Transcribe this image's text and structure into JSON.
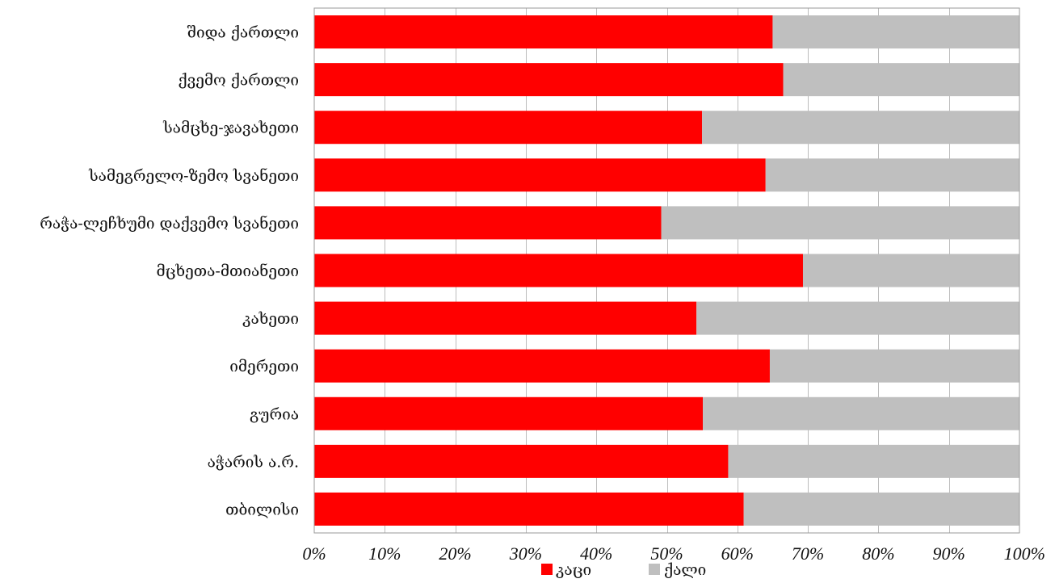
{
  "chart_data": {
    "type": "bar",
    "orientation": "horizontal",
    "stacked": "percent",
    "categories": [
      "შიდა ქართლი",
      "ქვემო ქართლი",
      "სამცხე-ჯავახეთი",
      "სამეგრელო-ზემო სვანეთი",
      "რაჭა-ლეჩხუმი დაქვემო სვანეთი",
      "მცხეთა-მთიანეთი",
      "კახეთი",
      "იმერეთი",
      "გურია",
      "აჭარის ა.რ.",
      "თბილისი"
    ],
    "series": [
      {
        "name": "კაცი",
        "color": "#ff0000",
        "values": [
          65,
          66.5,
          55,
          64,
          49.2,
          69.3,
          54.2,
          64.6,
          55.1,
          58.7,
          60.9
        ]
      },
      {
        "name": "ქალი",
        "color": "#bfbfbf",
        "values": [
          35,
          33.5,
          45,
          36,
          50.8,
          30.7,
          45.8,
          35.4,
          44.9,
          41.3,
          39.1
        ]
      }
    ],
    "x_ticks": [
      "0%",
      "10%",
      "20%",
      "30%",
      "40%",
      "50%",
      "60%",
      "70%",
      "80%",
      "90%",
      "100%"
    ],
    "xlim": [
      0,
      100
    ],
    "grid": "vertical",
    "legend_position": "bottom"
  }
}
